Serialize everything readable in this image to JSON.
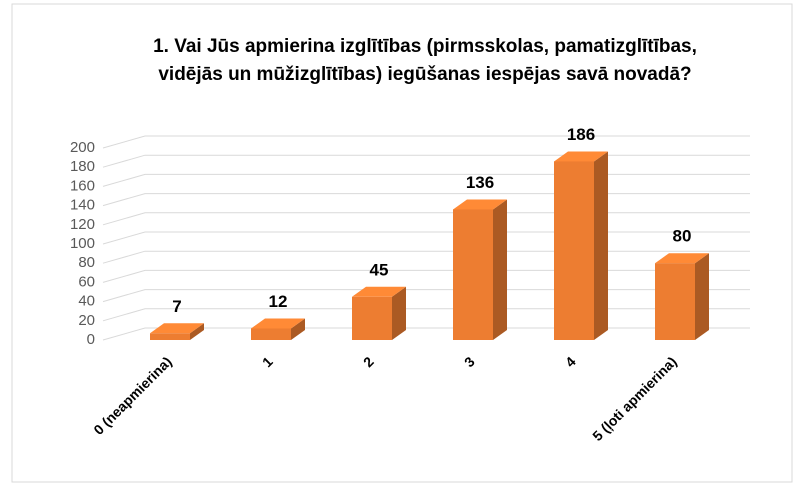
{
  "chart_data": {
    "type": "bar3d",
    "title": [
      "1. Vai Jūs apmierina izglītības (pirmsskolas, pamatizglītības,",
      "vidējās un mūžizglītības) iegūšanas iespējas savā novadā?"
    ],
    "categories": [
      "0 (neapmierina)",
      "1",
      "2",
      "3",
      "4",
      "5 (ļoti apmierina)"
    ],
    "values": [
      7,
      12,
      45,
      136,
      186,
      80
    ],
    "color": "#ed7d31",
    "ylim": [
      0,
      200
    ],
    "yticks": [
      0,
      20,
      40,
      60,
      80,
      100,
      120,
      140,
      160,
      180,
      200
    ],
    "grid": true
  }
}
